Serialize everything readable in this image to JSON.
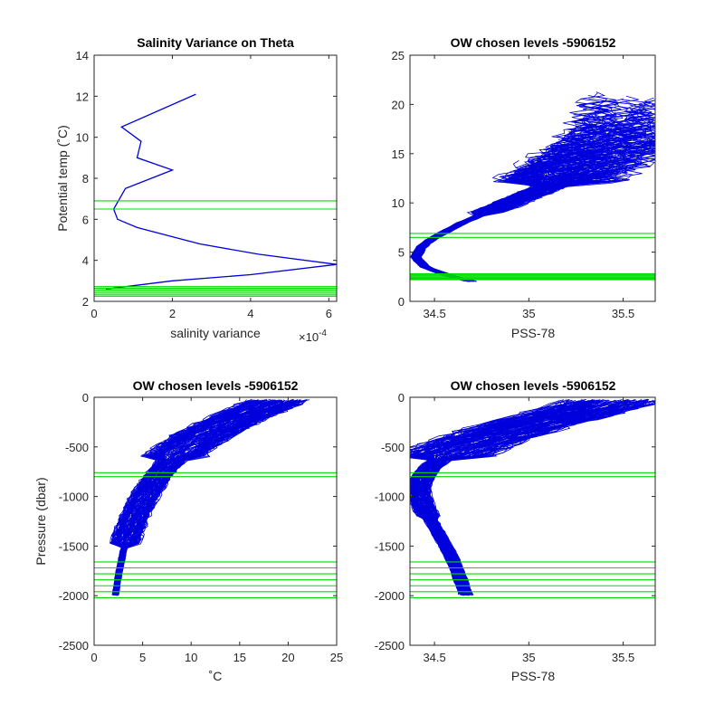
{
  "chart_data": [
    {
      "id": "p1",
      "type": "line",
      "title": "Salinity Variance on Theta",
      "xlabel": "salinity variance",
      "ylabel": "Potential temp (˚C)",
      "exponent_label": "×10",
      "exponent_power": "-4",
      "xlim": [
        0,
        6.2
      ],
      "ylim": [
        2,
        14
      ],
      "xticks": [
        0,
        2,
        4,
        6
      ],
      "xtick_labels": [
        "0",
        "2",
        "4",
        "6"
      ],
      "yticks": [
        2,
        4,
        6,
        8,
        10,
        12,
        14
      ],
      "ytick_labels": [
        "2",
        "4",
        "6",
        "8",
        "10",
        "12",
        "14"
      ],
      "line_color": "#0000dd",
      "level_color": "#00dd00",
      "series": [
        {
          "x": [
            2.6,
            0.7,
            1.2,
            1.1,
            2.0,
            0.8,
            0.5,
            0.6,
            1.1,
            2.7,
            4.2,
            6.2,
            4.0,
            2.0,
            0.3
          ],
          "y": [
            12.1,
            10.5,
            9.8,
            9.0,
            8.4,
            7.5,
            6.5,
            6.0,
            5.6,
            4.8,
            4.3,
            3.8,
            3.3,
            3.0,
            2.6
          ]
        }
      ],
      "hlines": [
        6.5,
        6.9,
        2.25,
        2.32,
        2.4,
        2.48,
        2.56,
        2.64,
        2.72
      ]
    },
    {
      "id": "p2",
      "type": "line",
      "title": "OW chosen levels -5906152",
      "xlabel": "PSS-78",
      "ylabel": "",
      "xlim": [
        34.37,
        35.67
      ],
      "ylim": [
        0,
        25
      ],
      "xticks": [
        34.5,
        35,
        35.5
      ],
      "xtick_labels": [
        "34.5",
        "35",
        "35.5"
      ],
      "yticks": [
        0,
        5,
        10,
        15,
        20,
        25
      ],
      "ytick_labels": [
        "0",
        "5",
        "10",
        "15",
        "20",
        "25"
      ],
      "line_color": "#0000dd",
      "level_color": "#00dd00",
      "profile_count": 130,
      "envelope_theta": [
        2.0,
        2.8,
        3.5,
        4.5,
        5.5,
        6.5,
        8.0,
        10.0,
        12.0,
        14.0,
        16.0,
        18.0,
        20.0,
        21.5
      ],
      "envelope_sal": [
        34.7,
        34.55,
        34.45,
        34.4,
        34.43,
        34.5,
        34.65,
        34.9,
        35.15,
        35.3,
        35.45,
        35.55,
        35.6,
        35.62
      ],
      "hlines": [
        6.5,
        6.9,
        2.2,
        2.3,
        2.4,
        2.5,
        2.6,
        2.7,
        2.8
      ]
    },
    {
      "id": "p3",
      "type": "line",
      "title": "OW chosen levels -5906152",
      "xlabel": "˚C",
      "ylabel": "Pressure (dbar)",
      "xlim": [
        0,
        25
      ],
      "ylim": [
        -2500,
        0
      ],
      "xticks": [
        0,
        5,
        10,
        15,
        20,
        25
      ],
      "xtick_labels": [
        "0",
        "5",
        "10",
        "15",
        "20",
        "25"
      ],
      "yticks": [
        0,
        -500,
        -1000,
        -1500,
        -2000,
        -2500
      ],
      "ytick_labels": [
        "0",
        "-500",
        "-1000",
        "-1500",
        "-2000",
        "-2500"
      ],
      "line_color": "#0000dd",
      "level_color": "#00dd00",
      "profile_count": 130,
      "envelope_pressure": [
        0,
        -100,
        -200,
        -300,
        -400,
        -500,
        -600,
        -800,
        -1000,
        -1200,
        -1400,
        -1600,
        -1800,
        -2000
      ],
      "envelope_temp": [
        19.5,
        17.5,
        15.0,
        13.0,
        11.0,
        9.5,
        8.3,
        6.5,
        5.2,
        4.2,
        3.4,
        2.9,
        2.5,
        2.2
      ],
      "hlines": [
        -760,
        -800,
        -1660,
        -1720,
        -1780,
        -1840,
        -1900,
        -1960,
        -2020
      ]
    },
    {
      "id": "p4",
      "type": "line",
      "title": "OW chosen levels -5906152",
      "xlabel": "PSS-78",
      "ylabel": "",
      "xlim": [
        34.37,
        35.67
      ],
      "ylim": [
        -2500,
        0
      ],
      "xticks": [
        34.5,
        35,
        35.5
      ],
      "xtick_labels": [
        "34.5",
        "35",
        "35.5"
      ],
      "yticks": [
        0,
        -500,
        -1000,
        -1500,
        -2000,
        -2500
      ],
      "ytick_labels": [
        "0",
        "-500",
        "-1000",
        "-1500",
        "-2000",
        "-2500"
      ],
      "line_color": "#0000dd",
      "level_color": "#00dd00",
      "profile_count": 130,
      "envelope_pressure": [
        0,
        -100,
        -200,
        -300,
        -400,
        -500,
        -600,
        -700,
        -800,
        -900,
        -1000,
        -1200,
        -1400,
        -1600,
        -1800,
        -2000
      ],
      "envelope_sal": [
        35.5,
        35.35,
        35.15,
        34.95,
        34.8,
        34.65,
        34.55,
        34.48,
        34.44,
        34.42,
        34.42,
        34.47,
        34.53,
        34.59,
        34.63,
        34.67
      ],
      "hlines": [
        -760,
        -800,
        -1660,
        -1720,
        -1780,
        -1840,
        -1900,
        -1960,
        -2020
      ]
    }
  ]
}
